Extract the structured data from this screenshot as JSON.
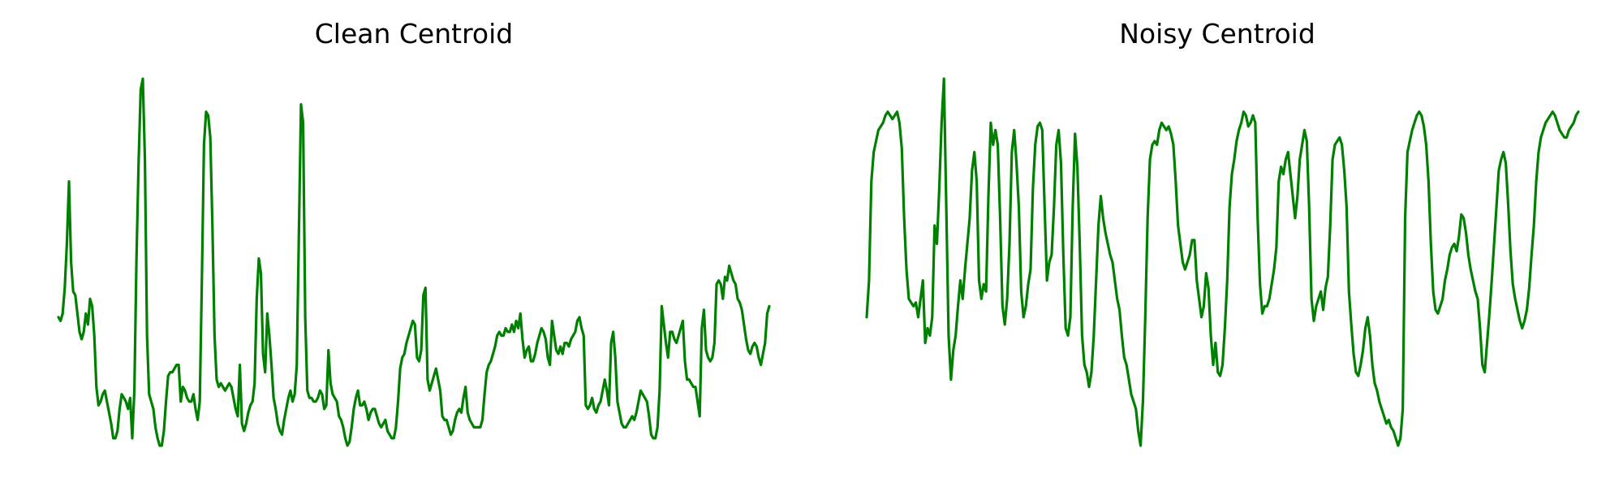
{
  "chart_data": [
    {
      "type": "line",
      "title": "Clean Centroid",
      "xlabel": "",
      "ylabel": "",
      "axes_visible": false,
      "grid": false,
      "legend": "none",
      "color": "#008000",
      "ylim": [
        0,
        1
      ],
      "series": [
        {
          "values": [
            0.35,
            0.34,
            0.36,
            0.43,
            0.55,
            0.72,
            0.5,
            0.42,
            0.41,
            0.36,
            0.31,
            0.29,
            0.31,
            0.36,
            0.33,
            0.4,
            0.38,
            0.3,
            0.16,
            0.11,
            0.12,
            0.14,
            0.15,
            0.12,
            0.09,
            0.06,
            0.02,
            0.02,
            0.04,
            0.1,
            0.14,
            0.13,
            0.12,
            0.1,
            0.13,
            0.02,
            0.15,
            0.51,
            0.77,
            0.97,
            1.0,
            0.78,
            0.3,
            0.14,
            0.12,
            0.1,
            0.05,
            0.02,
            0.0,
            0.0,
            0.04,
            0.12,
            0.19,
            0.2,
            0.2,
            0.21,
            0.22,
            0.22,
            0.12,
            0.16,
            0.15,
            0.13,
            0.12,
            0.12,
            0.14,
            0.1,
            0.07,
            0.12,
            0.45,
            0.82,
            0.91,
            0.9,
            0.84,
            0.6,
            0.3,
            0.18,
            0.16,
            0.17,
            0.16,
            0.15,
            0.16,
            0.17,
            0.16,
            0.13,
            0.1,
            0.08,
            0.22,
            0.06,
            0.04,
            0.06,
            0.09,
            0.11,
            0.12,
            0.17,
            0.4,
            0.51,
            0.47,
            0.25,
            0.2,
            0.36,
            0.3,
            0.22,
            0.13,
            0.1,
            0.06,
            0.04,
            0.03,
            0.07,
            0.1,
            0.13,
            0.15,
            0.12,
            0.14,
            0.22,
            0.58,
            0.93,
            0.88,
            0.35,
            0.15,
            0.13,
            0.13,
            0.12,
            0.12,
            0.13,
            0.15,
            0.14,
            0.1,
            0.11,
            0.26,
            0.17,
            0.14,
            0.13,
            0.12,
            0.08,
            0.07,
            0.05,
            0.02,
            0.0,
            0.01,
            0.05,
            0.1,
            0.13,
            0.15,
            0.11,
            0.11,
            0.12,
            0.1,
            0.07,
            0.09,
            0.1,
            0.1,
            0.08,
            0.06,
            0.05,
            0.06,
            0.07,
            0.04,
            0.03,
            0.02,
            0.02,
            0.05,
            0.12,
            0.21,
            0.24,
            0.25,
            0.28,
            0.3,
            0.32,
            0.34,
            0.33,
            0.24,
            0.23,
            0.26,
            0.41,
            0.43,
            0.18,
            0.15,
            0.17,
            0.19,
            0.21,
            0.18,
            0.15,
            0.08,
            0.07,
            0.07,
            0.05,
            0.03,
            0.04,
            0.07,
            0.09,
            0.1,
            0.09,
            0.13,
            0.16,
            0.09,
            0.07,
            0.06,
            0.05,
            0.05,
            0.05,
            0.05,
            0.07,
            0.14,
            0.2,
            0.22,
            0.23,
            0.25,
            0.27,
            0.3,
            0.31,
            0.3,
            0.3,
            0.32,
            0.31,
            0.31,
            0.33,
            0.31,
            0.34,
            0.32,
            0.36,
            0.29,
            0.24,
            0.26,
            0.27,
            0.23,
            0.23,
            0.25,
            0.28,
            0.3,
            0.32,
            0.31,
            0.29,
            0.24,
            0.22,
            0.34,
            0.3,
            0.26,
            0.25,
            0.27,
            0.25,
            0.28,
            0.28,
            0.27,
            0.29,
            0.3,
            0.31,
            0.34,
            0.35,
            0.32,
            0.3,
            0.11,
            0.1,
            0.11,
            0.13,
            0.1,
            0.09,
            0.11,
            0.12,
            0.15,
            0.18,
            0.15,
            0.11,
            0.28,
            0.31,
            0.24,
            0.12,
            0.09,
            0.06,
            0.05,
            0.05,
            0.06,
            0.07,
            0.08,
            0.07,
            0.09,
            0.12,
            0.15,
            0.14,
            0.13,
            0.12,
            0.08,
            0.03,
            0.02,
            0.02,
            0.05,
            0.15,
            0.38,
            0.33,
            0.28,
            0.24,
            0.31,
            0.31,
            0.29,
            0.28,
            0.3,
            0.32,
            0.34,
            0.23,
            0.18,
            0.18,
            0.17,
            0.16,
            0.16,
            0.12,
            0.08,
            0.32,
            0.37,
            0.26,
            0.24,
            0.23,
            0.24,
            0.28,
            0.44,
            0.45,
            0.44,
            0.4,
            0.46,
            0.45,
            0.49,
            0.47,
            0.45,
            0.44,
            0.4,
            0.39,
            0.37,
            0.33,
            0.29,
            0.26,
            0.25,
            0.27,
            0.28,
            0.27,
            0.24,
            0.22,
            0.25,
            0.28,
            0.36,
            0.38
          ]
        }
      ]
    },
    {
      "type": "line",
      "title": "Noisy Centroid",
      "xlabel": "",
      "ylabel": "",
      "axes_visible": false,
      "grid": false,
      "legend": "none",
      "color": "#008000",
      "ylim": [
        0,
        1
      ],
      "series": [
        {
          "values": [
            0.35,
            0.45,
            0.72,
            0.8,
            0.83,
            0.86,
            0.87,
            0.88,
            0.9,
            0.91,
            0.9,
            0.89,
            0.9,
            0.91,
            0.88,
            0.81,
            0.62,
            0.48,
            0.4,
            0.39,
            0.38,
            0.39,
            0.35,
            0.4,
            0.45,
            0.28,
            0.32,
            0.3,
            0.35,
            0.6,
            0.55,
            0.7,
            0.88,
            1.0,
            0.65,
            0.3,
            0.18,
            0.26,
            0.3,
            0.38,
            0.45,
            0.4,
            0.48,
            0.55,
            0.62,
            0.75,
            0.8,
            0.72,
            0.45,
            0.4,
            0.44,
            0.42,
            0.68,
            0.88,
            0.82,
            0.86,
            0.82,
            0.62,
            0.38,
            0.33,
            0.4,
            0.55,
            0.8,
            0.86,
            0.77,
            0.65,
            0.42,
            0.35,
            0.38,
            0.44,
            0.48,
            0.7,
            0.82,
            0.87,
            0.88,
            0.86,
            0.65,
            0.45,
            0.5,
            0.52,
            0.65,
            0.82,
            0.86,
            0.77,
            0.52,
            0.32,
            0.3,
            0.35,
            0.65,
            0.85,
            0.76,
            0.55,
            0.3,
            0.22,
            0.2,
            0.16,
            0.2,
            0.3,
            0.45,
            0.6,
            0.68,
            0.62,
            0.58,
            0.55,
            0.52,
            0.5,
            0.45,
            0.4,
            0.37,
            0.3,
            0.24,
            0.22,
            0.18,
            0.14,
            0.12,
            0.1,
            0.04,
            0.0,
            0.12,
            0.35,
            0.62,
            0.78,
            0.82,
            0.83,
            0.82,
            0.86,
            0.88,
            0.87,
            0.86,
            0.87,
            0.85,
            0.82,
            0.72,
            0.6,
            0.55,
            0.5,
            0.48,
            0.5,
            0.52,
            0.56,
            0.56,
            0.45,
            0.4,
            0.35,
            0.38,
            0.47,
            0.43,
            0.3,
            0.22,
            0.28,
            0.2,
            0.19,
            0.22,
            0.32,
            0.45,
            0.65,
            0.74,
            0.78,
            0.83,
            0.86,
            0.88,
            0.91,
            0.9,
            0.87,
            0.88,
            0.9,
            0.88,
            0.62,
            0.44,
            0.36,
            0.38,
            0.38,
            0.4,
            0.44,
            0.48,
            0.54,
            0.72,
            0.76,
            0.74,
            0.78,
            0.8,
            0.74,
            0.68,
            0.62,
            0.68,
            0.78,
            0.82,
            0.86,
            0.83,
            0.65,
            0.4,
            0.34,
            0.38,
            0.4,
            0.42,
            0.37,
            0.43,
            0.46,
            0.6,
            0.78,
            0.82,
            0.83,
            0.84,
            0.82,
            0.75,
            0.65,
            0.42,
            0.33,
            0.25,
            0.2,
            0.19,
            0.22,
            0.26,
            0.32,
            0.35,
            0.3,
            0.22,
            0.17,
            0.15,
            0.12,
            0.1,
            0.08,
            0.06,
            0.07,
            0.05,
            0.04,
            0.02,
            0.0,
            0.02,
            0.1,
            0.62,
            0.8,
            0.83,
            0.86,
            0.88,
            0.9,
            0.91,
            0.9,
            0.87,
            0.82,
            0.72,
            0.55,
            0.42,
            0.37,
            0.36,
            0.38,
            0.4,
            0.45,
            0.48,
            0.52,
            0.54,
            0.55,
            0.53,
            0.57,
            0.63,
            0.62,
            0.58,
            0.52,
            0.48,
            0.45,
            0.42,
            0.4,
            0.32,
            0.22,
            0.2,
            0.28,
            0.36,
            0.45,
            0.55,
            0.65,
            0.75,
            0.78,
            0.8,
            0.77,
            0.66,
            0.53,
            0.44,
            0.4,
            0.37,
            0.34,
            0.32,
            0.34,
            0.37,
            0.43,
            0.52,
            0.6,
            0.72,
            0.8,
            0.84,
            0.86,
            0.88,
            0.89,
            0.9,
            0.91,
            0.9,
            0.88,
            0.86,
            0.85,
            0.84,
            0.84,
            0.86,
            0.87,
            0.88,
            0.9,
            0.91
          ]
        }
      ]
    }
  ]
}
